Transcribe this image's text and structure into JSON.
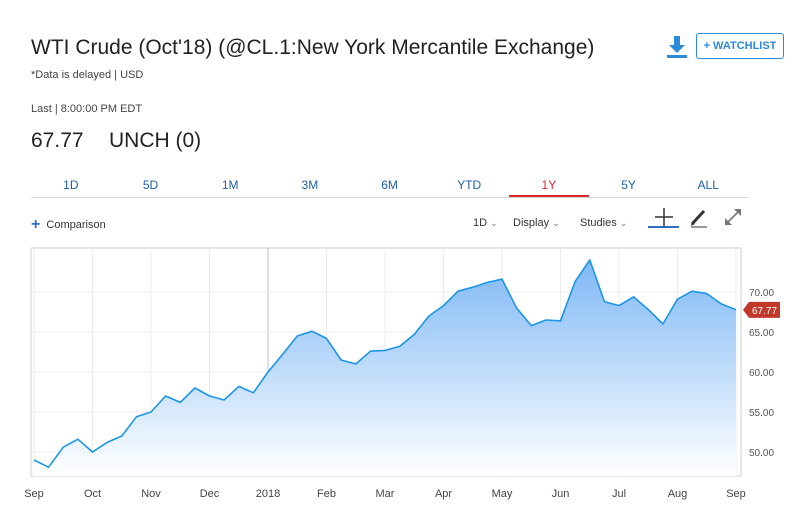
{
  "header": {
    "title": "WTI Crude (Oct'18) (@CL.1:New York Mercantile Exchange)",
    "data_note": "*Data is delayed | USD",
    "last_time": "Last | 8:00:00 PM EDT",
    "price": "67.77",
    "change": "UNCH (0)",
    "watchlist_label": "+ WATCHLIST",
    "download_icon": "download-icon"
  },
  "range_tabs": [
    {
      "label": "1D",
      "active": false
    },
    {
      "label": "5D",
      "active": false
    },
    {
      "label": "1M",
      "active": false
    },
    {
      "label": "3M",
      "active": false
    },
    {
      "label": "6M",
      "active": false
    },
    {
      "label": "YTD",
      "active": false
    },
    {
      "label": "1Y",
      "active": true
    },
    {
      "label": "5Y",
      "active": false
    },
    {
      "label": "ALL",
      "active": false
    }
  ],
  "toolbar": {
    "comparison_label": "Comparison",
    "interval_label": "1D",
    "display_label": "Display",
    "studies_label": "Studies",
    "tools": [
      "crosshair-icon",
      "pencil-icon",
      "expand-icon"
    ]
  },
  "colors": {
    "line": "#1a96e6",
    "fill_top": "#7fb8f5",
    "fill_bottom": "#ffffff",
    "price_tag": "#c0392b",
    "link": "#1f5fa8",
    "active_tab": "#d8262f"
  },
  "chart_data": {
    "type": "area",
    "ylim": [
      47,
      75.5
    ],
    "y_ticks": [
      "50.00",
      "55.00",
      "60.00",
      "65.00",
      "70.00"
    ],
    "x_labels": [
      "Sep",
      "Oct",
      "Nov",
      "Dec",
      "2018",
      "Feb",
      "Mar",
      "Apr",
      "May",
      "Jun",
      "Jul",
      "Aug",
      "Sep"
    ],
    "x_label_months": [
      0,
      1,
      2,
      3,
      4,
      5,
      6,
      7,
      8,
      9,
      10,
      11,
      12
    ],
    "current_value_label": "67.77",
    "current_value": 67.77,
    "month": [
      0,
      0.25,
      0.5,
      0.75,
      1,
      1.25,
      1.5,
      1.75,
      2,
      2.25,
      2.5,
      2.75,
      3,
      3.25,
      3.5,
      3.75,
      4,
      4.25,
      4.5,
      4.75,
      5,
      5.25,
      5.5,
      5.75,
      6,
      6.25,
      6.5,
      6.75,
      7,
      7.25,
      7.5,
      7.75,
      8,
      8.25,
      8.5,
      8.75,
      9,
      9.25,
      9.5,
      9.75,
      10,
      10.25,
      10.5,
      10.75,
      11,
      11.25,
      11.5,
      11.75,
      12
    ],
    "values": [
      49.0,
      48.1,
      50.6,
      51.6,
      50.0,
      51.2,
      52.0,
      54.4,
      55.0,
      57.0,
      56.2,
      58.0,
      57.0,
      56.5,
      58.2,
      57.4,
      60.0,
      62.2,
      64.5,
      65.1,
      64.2,
      61.5,
      61.0,
      62.6,
      62.7,
      63.2,
      64.7,
      67.0,
      68.3,
      70.1,
      70.6,
      71.2,
      71.6,
      68.0,
      65.8,
      66.5,
      66.4,
      71.3,
      74.0,
      68.8,
      68.3,
      69.4,
      67.8,
      66.0,
      69.1,
      70.1,
      69.8,
      68.5,
      67.77
    ]
  }
}
